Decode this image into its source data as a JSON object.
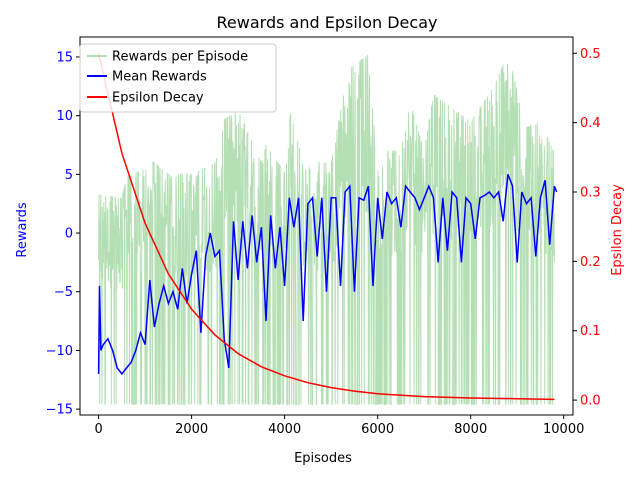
{
  "chart_data": {
    "type": "line",
    "title": "Rewards and Epsilon Decay",
    "xlabel": "Episodes",
    "ylabel_left": "Rewards",
    "ylabel_right": "Epsilon Decay",
    "xlim": [
      -400,
      10200
    ],
    "ylim_left": [
      -15.5,
      16.7
    ],
    "ylim_right": [
      -0.0215,
      0.5235
    ],
    "x_ticks": [
      0,
      2000,
      4000,
      6000,
      8000,
      10000
    ],
    "x_tick_labels": [
      "0",
      "2000",
      "4000",
      "6000",
      "8000",
      "10000"
    ],
    "y_left_ticks": [
      -15,
      -10,
      -5,
      0,
      5,
      10,
      15
    ],
    "y_left_tick_labels": [
      "−15",
      "−10",
      "−5",
      "0",
      "5",
      "10",
      "15"
    ],
    "y_right_ticks": [
      0.0,
      0.1,
      0.2,
      0.3,
      0.4,
      0.5
    ],
    "y_right_tick_labels": [
      "0.0",
      "0.1",
      "0.2",
      "0.3",
      "0.4",
      "0.5"
    ],
    "grid": false,
    "legend_position": "top-left",
    "left_axis_color": "#0000ff",
    "right_axis_color": "#ff0000",
    "series": [
      {
        "name": "Rewards per Episode",
        "axis": "left",
        "color": "#76c477",
        "style": "noisy band",
        "upper_envelope": [
          [
            0,
            3.3
          ],
          [
            500,
            3.0
          ],
          [
            600,
            4.8
          ],
          [
            1000,
            5.5
          ],
          [
            1100,
            6.3
          ],
          [
            1500,
            5.0
          ],
          [
            2000,
            5.0
          ],
          [
            2500,
            6.0
          ],
          [
            2600,
            7.0
          ],
          [
            2700,
            9.7
          ],
          [
            3000,
            10.5
          ],
          [
            3500,
            6.0
          ],
          [
            3600,
            7.5
          ],
          [
            4000,
            5.2
          ],
          [
            4100,
            10.6
          ],
          [
            4400,
            6.0
          ],
          [
            5000,
            6.0
          ],
          [
            5300,
            12.5
          ],
          [
            5400,
            14.0
          ],
          [
            5800,
            15.2
          ],
          [
            6000,
            7.0
          ],
          [
            6500,
            7.0
          ],
          [
            6600,
            12.5
          ],
          [
            7000,
            7.0
          ],
          [
            7200,
            11.8
          ],
          [
            8000,
            9.5
          ],
          [
            8500,
            12.5
          ],
          [
            8800,
            15.3
          ],
          [
            9200,
            9.0
          ],
          [
            9500,
            9.5
          ],
          [
            9800,
            6.8
          ]
        ],
        "lower_envelope": [
          [
            0,
            -14.6
          ],
          [
            9800,
            -14.6
          ]
        ]
      },
      {
        "name": "Mean Rewards",
        "axis": "left",
        "color": "#0000ff",
        "points": [
          [
            0,
            -12.0
          ],
          [
            20,
            -4.5
          ],
          [
            50,
            -10.0
          ],
          [
            100,
            -9.5
          ],
          [
            200,
            -9.0
          ],
          [
            300,
            -10.0
          ],
          [
            400,
            -11.5
          ],
          [
            500,
            -12.0
          ],
          [
            600,
            -11.5
          ],
          [
            700,
            -11.0
          ],
          [
            800,
            -10.0
          ],
          [
            900,
            -8.5
          ],
          [
            1000,
            -9.5
          ],
          [
            1100,
            -4.0
          ],
          [
            1200,
            -8.0
          ],
          [
            1300,
            -6.0
          ],
          [
            1400,
            -4.5
          ],
          [
            1500,
            -6.0
          ],
          [
            1600,
            -5.0
          ],
          [
            1700,
            -6.5
          ],
          [
            1800,
            -3.0
          ],
          [
            1900,
            -6.0
          ],
          [
            2000,
            -3.5
          ],
          [
            2100,
            -1.5
          ],
          [
            2200,
            -8.5
          ],
          [
            2300,
            -2.0
          ],
          [
            2400,
            0.0
          ],
          [
            2500,
            -2.0
          ],
          [
            2600,
            -1.5
          ],
          [
            2700,
            -9.0
          ],
          [
            2800,
            -11.5
          ],
          [
            2900,
            1.0
          ],
          [
            3000,
            -4.0
          ],
          [
            3100,
            1.0
          ],
          [
            3200,
            -3.0
          ],
          [
            3300,
            1.5
          ],
          [
            3400,
            -2.5
          ],
          [
            3500,
            0.5
          ],
          [
            3600,
            -7.5
          ],
          [
            3700,
            1.5
          ],
          [
            3800,
            -3.0
          ],
          [
            3900,
            0.5
          ],
          [
            4000,
            -4.5
          ],
          [
            4100,
            3.0
          ],
          [
            4200,
            0.5
          ],
          [
            4300,
            3.0
          ],
          [
            4400,
            -7.5
          ],
          [
            4500,
            2.5
          ],
          [
            4600,
            3.0
          ],
          [
            4700,
            -2.0
          ],
          [
            4800,
            3.0
          ],
          [
            4900,
            -5.0
          ],
          [
            5000,
            3.0
          ],
          [
            5100,
            3.0
          ],
          [
            5200,
            -4.5
          ],
          [
            5300,
            3.5
          ],
          [
            5400,
            4.0
          ],
          [
            5500,
            -5.0
          ],
          [
            5600,
            3.0
          ],
          [
            5700,
            2.8
          ],
          [
            5800,
            4.0
          ],
          [
            5900,
            -4.5
          ],
          [
            6000,
            3.0
          ],
          [
            6100,
            -0.5
          ],
          [
            6200,
            3.5
          ],
          [
            6300,
            2.5
          ],
          [
            6400,
            3.0
          ],
          [
            6500,
            0.5
          ],
          [
            6600,
            4.0
          ],
          [
            6700,
            3.5
          ],
          [
            6800,
            3.0
          ],
          [
            6900,
            2.0
          ],
          [
            7000,
            3.0
          ],
          [
            7100,
            4.0
          ],
          [
            7200,
            3.0
          ],
          [
            7300,
            -2.5
          ],
          [
            7400,
            3.0
          ],
          [
            7500,
            -1.5
          ],
          [
            7600,
            3.5
          ],
          [
            7700,
            3.0
          ],
          [
            7800,
            -2.5
          ],
          [
            7900,
            3.0
          ],
          [
            8000,
            2.5
          ],
          [
            8100,
            -0.5
          ],
          [
            8200,
            3.0
          ],
          [
            8300,
            3.2
          ],
          [
            8400,
            3.5
          ],
          [
            8500,
            3.0
          ],
          [
            8600,
            3.5
          ],
          [
            8700,
            1.0
          ],
          [
            8800,
            5.0
          ],
          [
            8900,
            4.0
          ],
          [
            9000,
            -2.5
          ],
          [
            9100,
            3.5
          ],
          [
            9200,
            2.5
          ],
          [
            9300,
            3.0
          ],
          [
            9400,
            -2.0
          ],
          [
            9500,
            3.0
          ],
          [
            9600,
            4.5
          ],
          [
            9700,
            -1.0
          ],
          [
            9800,
            4.0
          ],
          [
            9850,
            3.5
          ]
        ]
      },
      {
        "name": "Epsilon Decay",
        "axis": "right",
        "color": "#ff0000",
        "points": [
          [
            0,
            0.5
          ],
          [
            500,
            0.356
          ],
          [
            1000,
            0.255
          ],
          [
            1500,
            0.182
          ],
          [
            2000,
            0.131
          ],
          [
            2500,
            0.094
          ],
          [
            3000,
            0.067
          ],
          [
            3500,
            0.048
          ],
          [
            4000,
            0.035
          ],
          [
            4500,
            0.025
          ],
          [
            5000,
            0.018
          ],
          [
            5500,
            0.013
          ],
          [
            6000,
            0.009
          ],
          [
            7000,
            0.005
          ],
          [
            8000,
            0.003
          ],
          [
            9000,
            0.002
          ],
          [
            9800,
            0.001
          ]
        ]
      }
    ]
  }
}
